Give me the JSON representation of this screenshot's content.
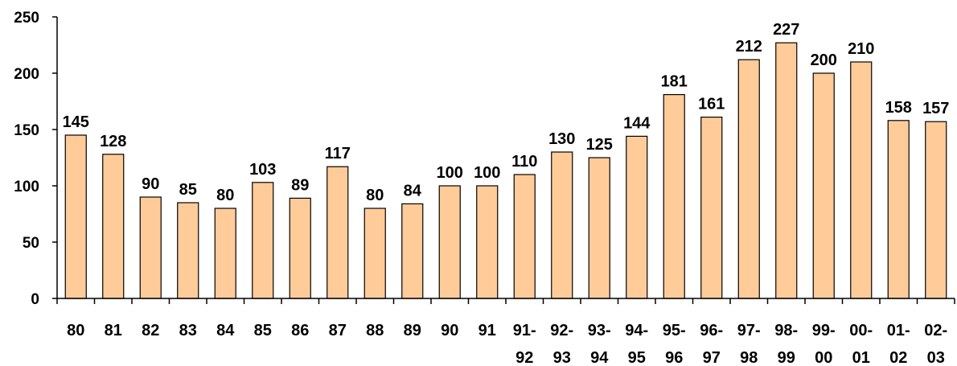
{
  "chart_data": {
    "type": "bar",
    "title": "",
    "xlabel": "",
    "ylabel": "",
    "ylim": [
      0,
      250
    ],
    "yticks": [
      "0",
      "50",
      "100",
      "150",
      "200",
      "250"
    ],
    "grid": false,
    "legend": "none",
    "bar_color": "#FFCC99",
    "bar_edge_color": "#000000",
    "categories": [
      [
        "80"
      ],
      [
        "81"
      ],
      [
        "82"
      ],
      [
        "83"
      ],
      [
        "84"
      ],
      [
        "85"
      ],
      [
        "86"
      ],
      [
        "87"
      ],
      [
        "88"
      ],
      [
        "89"
      ],
      [
        "90"
      ],
      [
        "91"
      ],
      [
        "91-",
        "92"
      ],
      [
        "92-",
        "93"
      ],
      [
        "93-",
        "94"
      ],
      [
        "94-",
        "95"
      ],
      [
        "95-",
        "96"
      ],
      [
        "96-",
        "97"
      ],
      [
        "97-",
        "98"
      ],
      [
        "98-",
        "99"
      ],
      [
        "99-",
        "00"
      ],
      [
        "00-",
        "01"
      ],
      [
        "01-",
        "02"
      ],
      [
        "02-",
        "03"
      ]
    ],
    "values": [
      145,
      128,
      90,
      85,
      80,
      103,
      89,
      117,
      80,
      84,
      100,
      100,
      110,
      130,
      125,
      144,
      181,
      161,
      212,
      227,
      200,
      210,
      158,
      157
    ],
    "value_labels": [
      "145",
      "128",
      "90",
      "85",
      "80",
      "103",
      "89",
      "117",
      "80",
      "84",
      "100",
      "100",
      "110",
      "130",
      "125",
      "144",
      "181",
      "161",
      "212",
      "227",
      "200",
      "210",
      "158",
      "157"
    ]
  }
}
